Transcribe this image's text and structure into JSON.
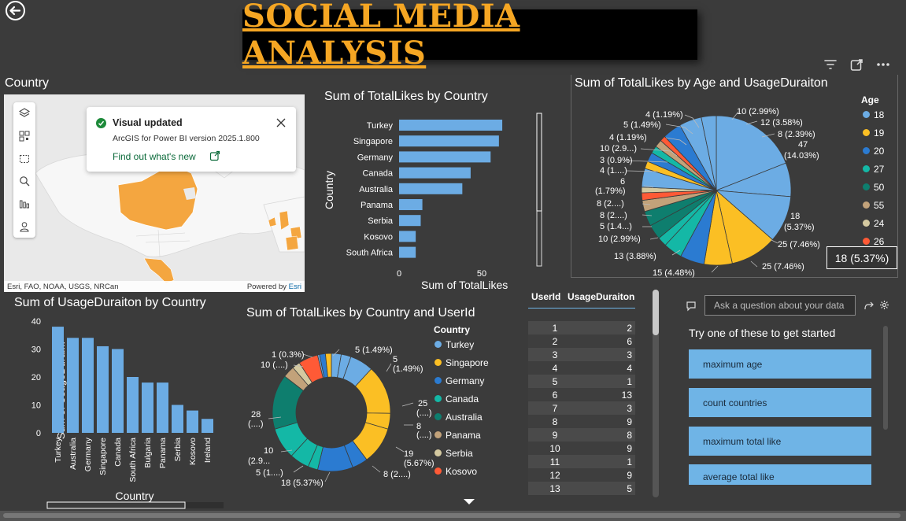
{
  "report_title": "SOCIAL MEDIA ANALYSIS",
  "back_icon": "back-arrow-icon",
  "visual_header_icons": [
    "filter-icon",
    "focus-mode-icon",
    "more-options-icon"
  ],
  "map": {
    "title": "Country",
    "toast": {
      "title": "Visual updated",
      "subtitle": "ArcGIS for Power BI version 2025.1.800",
      "link": "Find out what's new"
    },
    "attribution": "Esri, FAO, NOAA, USGS, NRCan",
    "powered_by_prefix": "Powered by ",
    "powered_by_brand": "Esri",
    "tools": [
      "layers-icon",
      "qr-select-icon",
      "rectangle-select-icon",
      "search-icon",
      "analytics-icon",
      "person-icon"
    ]
  },
  "likes_by_country": {
    "title": "Sum of TotalLikes by Country",
    "ylabel": "Country",
    "xlabel": "Sum of TotalLikes",
    "ticks": [
      "0",
      "50"
    ]
  },
  "usage_by_country": {
    "title": "Sum of UsageDuraiton by Country",
    "ylabel": "Sum of UsageDurai...",
    "xlabel": "Country",
    "ticks": [
      "0",
      "10",
      "20",
      "30",
      "40"
    ]
  },
  "likes_by_age_usage": {
    "title": "Sum of TotalLikes by Age and UsageDuraiton",
    "legend_title": "Age",
    "labels": [
      "4 (1.19%)",
      "5 (1.49%)",
      "4 (1.19%)",
      "10 (2.9...)",
      "3 (0.9%)",
      "4 (1....)",
      "6",
      "(1.79%)",
      "8 (2....)",
      "8 (2....)",
      "5 (1.4...)",
      "10 (2.99%)",
      "13 (3.88%)",
      "15 (4.48%)",
      "25 (7.46%)",
      "25 (7.46%)",
      "18",
      "(5.37%)",
      "47",
      "(14.03%)",
      "8 (2.39%)",
      "12 (3.58%)",
      "10 (2.99%)"
    ],
    "tooltip": "18 (5.37%)"
  },
  "likes_by_country_user": {
    "title": "Sum of TotalLikes by Country and UserId",
    "legend_title": "Country",
    "labels": [
      "1 (0.3%)",
      "10 (....)",
      "5 (1.49%)",
      "5",
      "(1.49%)",
      "25",
      "(....)",
      "8",
      "(....)",
      "19",
      "(5.67%)",
      "8 (2....)",
      "18 (5.37%)",
      "5 (1....)",
      "10",
      "(2.9...",
      "28",
      "(....)"
    ]
  },
  "table": {
    "headers": [
      "UserId",
      "UsageDuraiton"
    ],
    "rows": [
      [
        "1",
        "2"
      ],
      [
        "2",
        "6"
      ],
      [
        "3",
        "3"
      ],
      [
        "4",
        "4"
      ],
      [
        "5",
        "1"
      ],
      [
        "6",
        "13"
      ],
      [
        "7",
        "3"
      ],
      [
        "8",
        "9"
      ],
      [
        "9",
        "8"
      ],
      [
        "10",
        "9"
      ],
      [
        "11",
        "1"
      ],
      [
        "12",
        "9"
      ],
      [
        "13",
        "5"
      ]
    ]
  },
  "qa": {
    "placeholder": "Ask a question about your data",
    "prompt": "Try one of these to get started",
    "suggestions": [
      "maximum age",
      "count countries",
      "maximum total like",
      "average total like"
    ]
  },
  "chart_data": [
    {
      "type": "bar",
      "orientation": "horizontal",
      "title": "Sum of TotalLikes by Country",
      "xlabel": "Sum of TotalLikes",
      "ylabel": "Country",
      "categories": [
        "Turkey",
        "Singapore",
        "Germany",
        "Canada",
        "Australia",
        "Panama",
        "Serbia",
        "Kosovo",
        "South Africa"
      ],
      "values": [
        62,
        60,
        55,
        43,
        38,
        14,
        13,
        10,
        10
      ],
      "xlim": [
        0,
        70
      ],
      "color": "#6cace4"
    },
    {
      "type": "bar",
      "title": "Sum of UsageDuraiton by Country",
      "xlabel": "Country",
      "ylabel": "Sum of UsageDurai...",
      "categories": [
        "Turkey",
        "Australia",
        "Germany",
        "Singapore",
        "Canada",
        "South Africa",
        "Bulgaria",
        "Panama",
        "Serbia",
        "Kosovo",
        "Ireland"
      ],
      "values": [
        38,
        34,
        34,
        31,
        30,
        20,
        18,
        18,
        10,
        8,
        5
      ],
      "ylim": [
        0,
        40
      ],
      "color": "#6cace4"
    },
    {
      "type": "pie",
      "title": "Sum of TotalLikes by Age and UsageDuraiton",
      "legend": [
        "18",
        "19",
        "20",
        "27",
        "50",
        "55",
        "24",
        "26"
      ],
      "legend_colors": [
        "#6cace4",
        "#fbbf24",
        "#2b7bd1",
        "#14b8a6",
        "#0e7e6e",
        "#c2a27a",
        "#d4c9a0",
        "#ff5a36"
      ],
      "slices": [
        {
          "value": 47,
          "color": "#6cace4"
        },
        {
          "value": 18,
          "color": "#6cace4"
        },
        {
          "value": 25,
          "color": "#6cace4"
        },
        {
          "value": 25,
          "color": "#fbbf24"
        },
        {
          "value": 15,
          "color": "#fbbf24"
        },
        {
          "value": 13,
          "color": "#2b7bd1"
        },
        {
          "value": 10,
          "color": "#14b8a6"
        },
        {
          "value": 5,
          "color": "#14b8a6"
        },
        {
          "value": 8,
          "color": "#0e7e6e"
        },
        {
          "value": 8,
          "color": "#0e7e6e"
        },
        {
          "value": 6,
          "color": "#c2a27a"
        },
        {
          "value": 4,
          "color": "#ff5a36"
        },
        {
          "value": 3,
          "color": "#d4c9a0"
        },
        {
          "value": 10,
          "color": "#6cace4"
        },
        {
          "value": 4,
          "color": "#fbbf24"
        },
        {
          "value": 5,
          "color": "#2b7bd1"
        },
        {
          "value": 4,
          "color": "#14b8a6"
        },
        {
          "value": 4,
          "color": "#c2a27a"
        },
        {
          "value": 3,
          "color": "#ff5a36"
        },
        {
          "value": 10,
          "color": "#2b7bd1"
        },
        {
          "value": 12,
          "color": "#6cace4"
        },
        {
          "value": 8,
          "color": "#6cace4"
        }
      ]
    },
    {
      "type": "donut",
      "title": "Sum of TotalLikes by Country and UserId",
      "legend": [
        "Turkey",
        "Singapore",
        "Germany",
        "Canada",
        "Australia",
        "Panama",
        "Serbia",
        "Kosovo"
      ],
      "legend_colors": [
        "#6cace4",
        "#fbbf24",
        "#2b7bd1",
        "#14b8a6",
        "#0e7e6e",
        "#c2a27a",
        "#d4c9a0",
        "#ff5a36"
      ],
      "slices": [
        {
          "value": 5,
          "color": "#6cace4"
        },
        {
          "value": 5,
          "color": "#6cace4"
        },
        {
          "value": 12,
          "color": "#6cace4"
        },
        {
          "value": 25,
          "color": "#fbbf24"
        },
        {
          "value": 8,
          "color": "#fbbf24"
        },
        {
          "value": 19,
          "color": "#fbbf24"
        },
        {
          "value": 8,
          "color": "#2b7bd1"
        },
        {
          "value": 18,
          "color": "#2b7bd1"
        },
        {
          "value": 5,
          "color": "#14b8a6"
        },
        {
          "value": 10,
          "color": "#14b8a6"
        },
        {
          "value": 16,
          "color": "#14b8a6"
        },
        {
          "value": 28,
          "color": "#0e7e6e"
        },
        {
          "value": 6,
          "color": "#c2a27a"
        },
        {
          "value": 4,
          "color": "#d4c9a0"
        },
        {
          "value": 10,
          "color": "#ff5a36"
        },
        {
          "value": 1,
          "color": "#6cace4"
        },
        {
          "value": 3,
          "color": "#2b7bd1"
        },
        {
          "value": 3,
          "color": "#fbbf24"
        }
      ]
    }
  ]
}
